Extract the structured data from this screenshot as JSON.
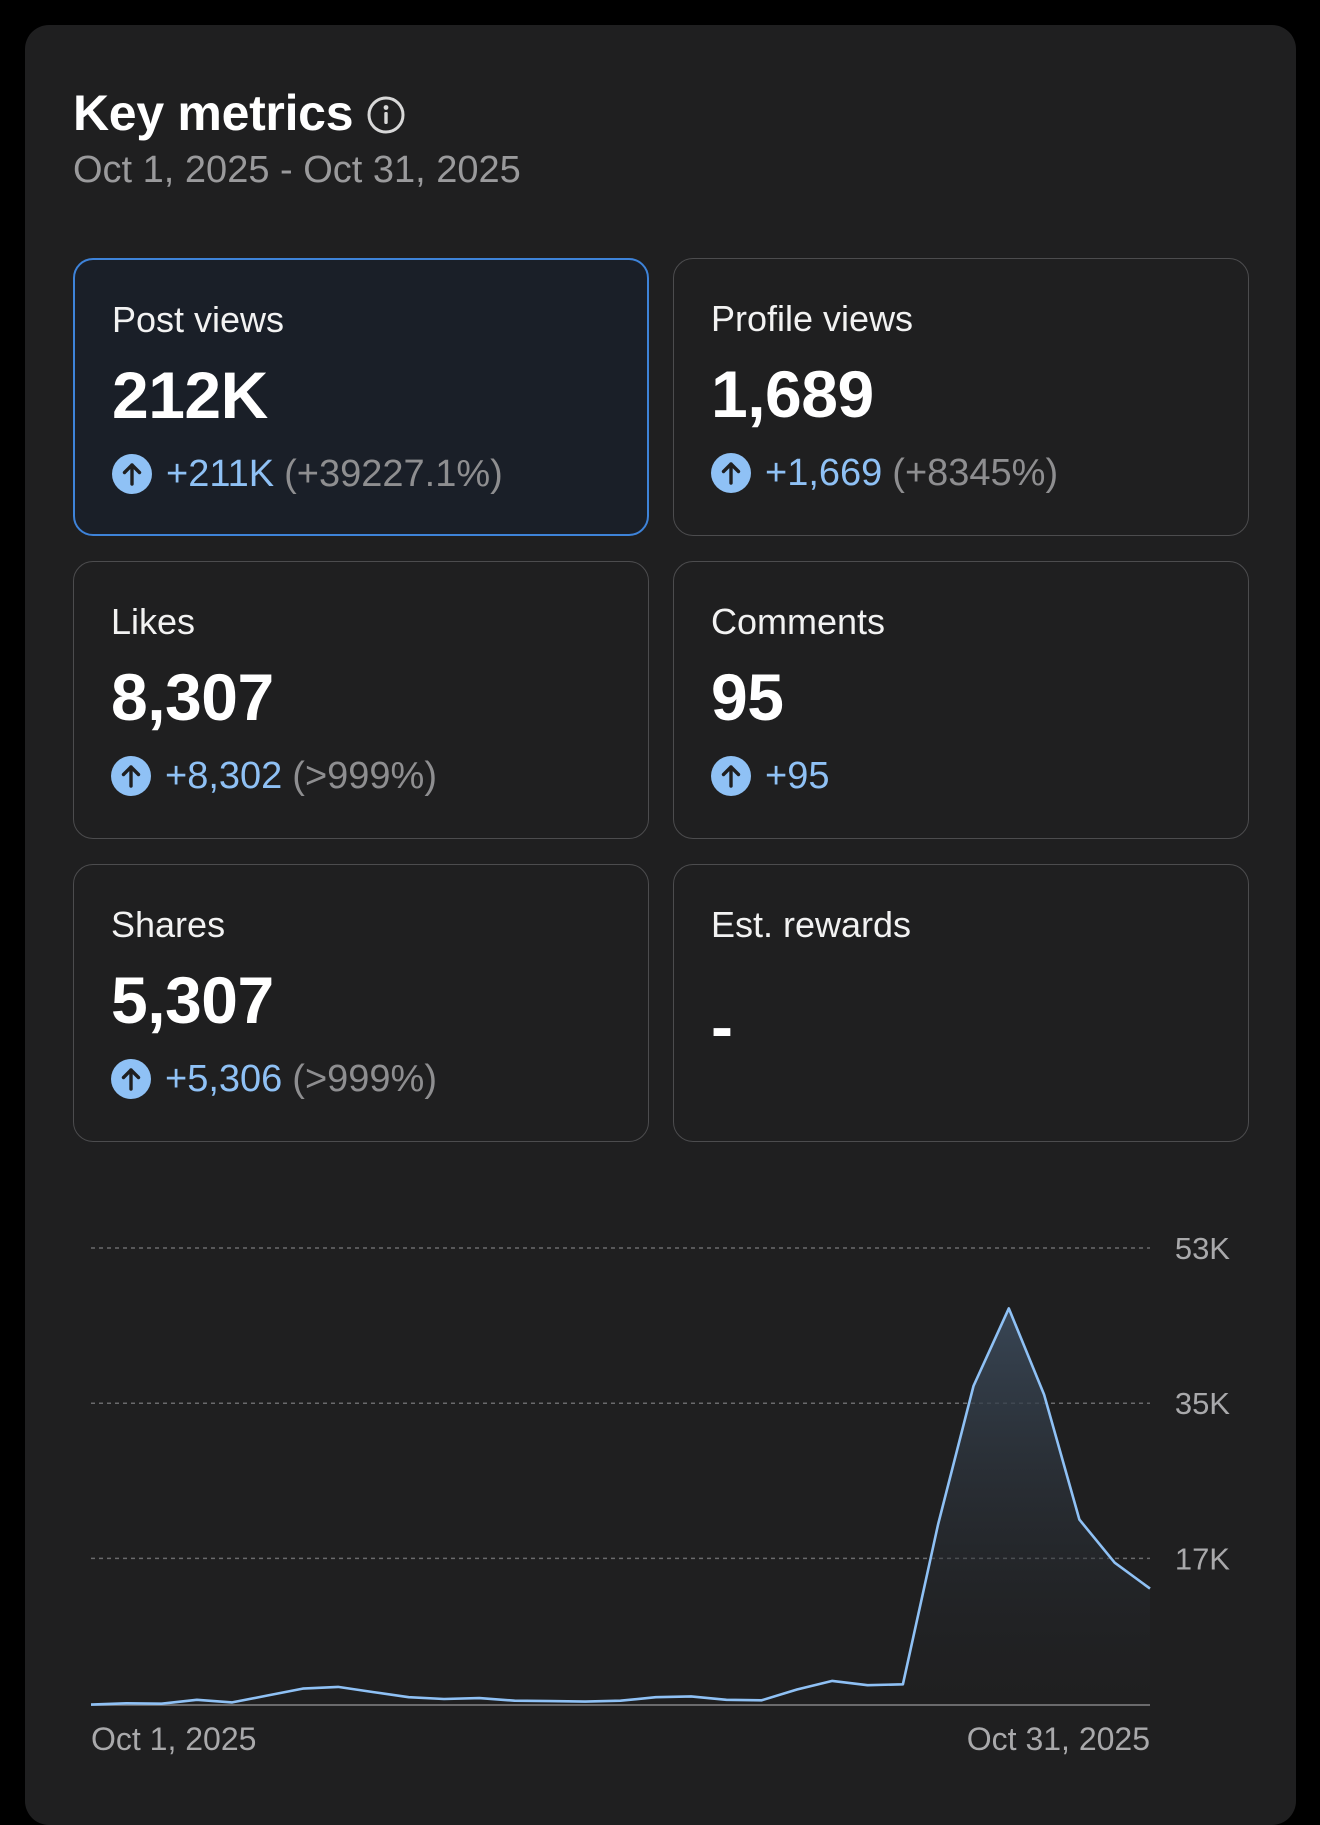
{
  "header": {
    "title": "Key metrics",
    "date_range": "Oct 1, 2025 - Oct 31, 2025"
  },
  "metrics": [
    {
      "label": "Post views",
      "value": "212K",
      "change": "+211K",
      "change_pct": "(+39227.1%)",
      "selected": true
    },
    {
      "label": "Profile views",
      "value": "1,689",
      "change": "+1,669",
      "change_pct": "(+8345%)"
    },
    {
      "label": "Likes",
      "value": "8,307",
      "change": "+8,302",
      "change_pct": "(>999%)"
    },
    {
      "label": "Comments",
      "value": "95",
      "change": "+95",
      "change_pct": ""
    },
    {
      "label": "Shares",
      "value": "5,307",
      "change": "+5,306",
      "change_pct": "(>999%)"
    },
    {
      "label": "Est. rewards",
      "value": "-",
      "change": "",
      "change_pct": ""
    }
  ],
  "colors": {
    "accent": "#8fc1f5",
    "selected_border": "#3e83d9",
    "line": "#8fc1f5"
  },
  "chart_data": {
    "type": "area",
    "x_labels": [
      "Oct 1, 2025",
      "Oct 31, 2025"
    ],
    "x": [
      "Oct 1",
      "Oct 2",
      "Oct 3",
      "Oct 4",
      "Oct 5",
      "Oct 6",
      "Oct 7",
      "Oct 8",
      "Oct 9",
      "Oct 10",
      "Oct 11",
      "Oct 12",
      "Oct 13",
      "Oct 14",
      "Oct 15",
      "Oct 16",
      "Oct 17",
      "Oct 18",
      "Oct 19",
      "Oct 20",
      "Oct 21",
      "Oct 22",
      "Oct 23",
      "Oct 24",
      "Oct 25",
      "Oct 26",
      "Oct 27",
      "Oct 28",
      "Oct 29",
      "Oct 30",
      "Oct 31"
    ],
    "series": [
      {
        "values": [
          50,
          200,
          150,
          600,
          300,
          1100,
          1900,
          2100,
          1500,
          900,
          700,
          800,
          500,
          450,
          400,
          500,
          900,
          1000,
          600,
          550,
          1800,
          2800,
          2300,
          2400,
          21000,
          37000,
          46000,
          36000,
          21500,
          16500,
          13500
        ]
      }
    ],
    "yticks": [
      {
        "value": 17000,
        "label": "17K"
      },
      {
        "value": 35000,
        "label": "35K"
      },
      {
        "value": 53000,
        "label": "53K"
      }
    ],
    "ylim": [
      0,
      53000
    ],
    "grid": true,
    "grid_style": "dashed"
  }
}
